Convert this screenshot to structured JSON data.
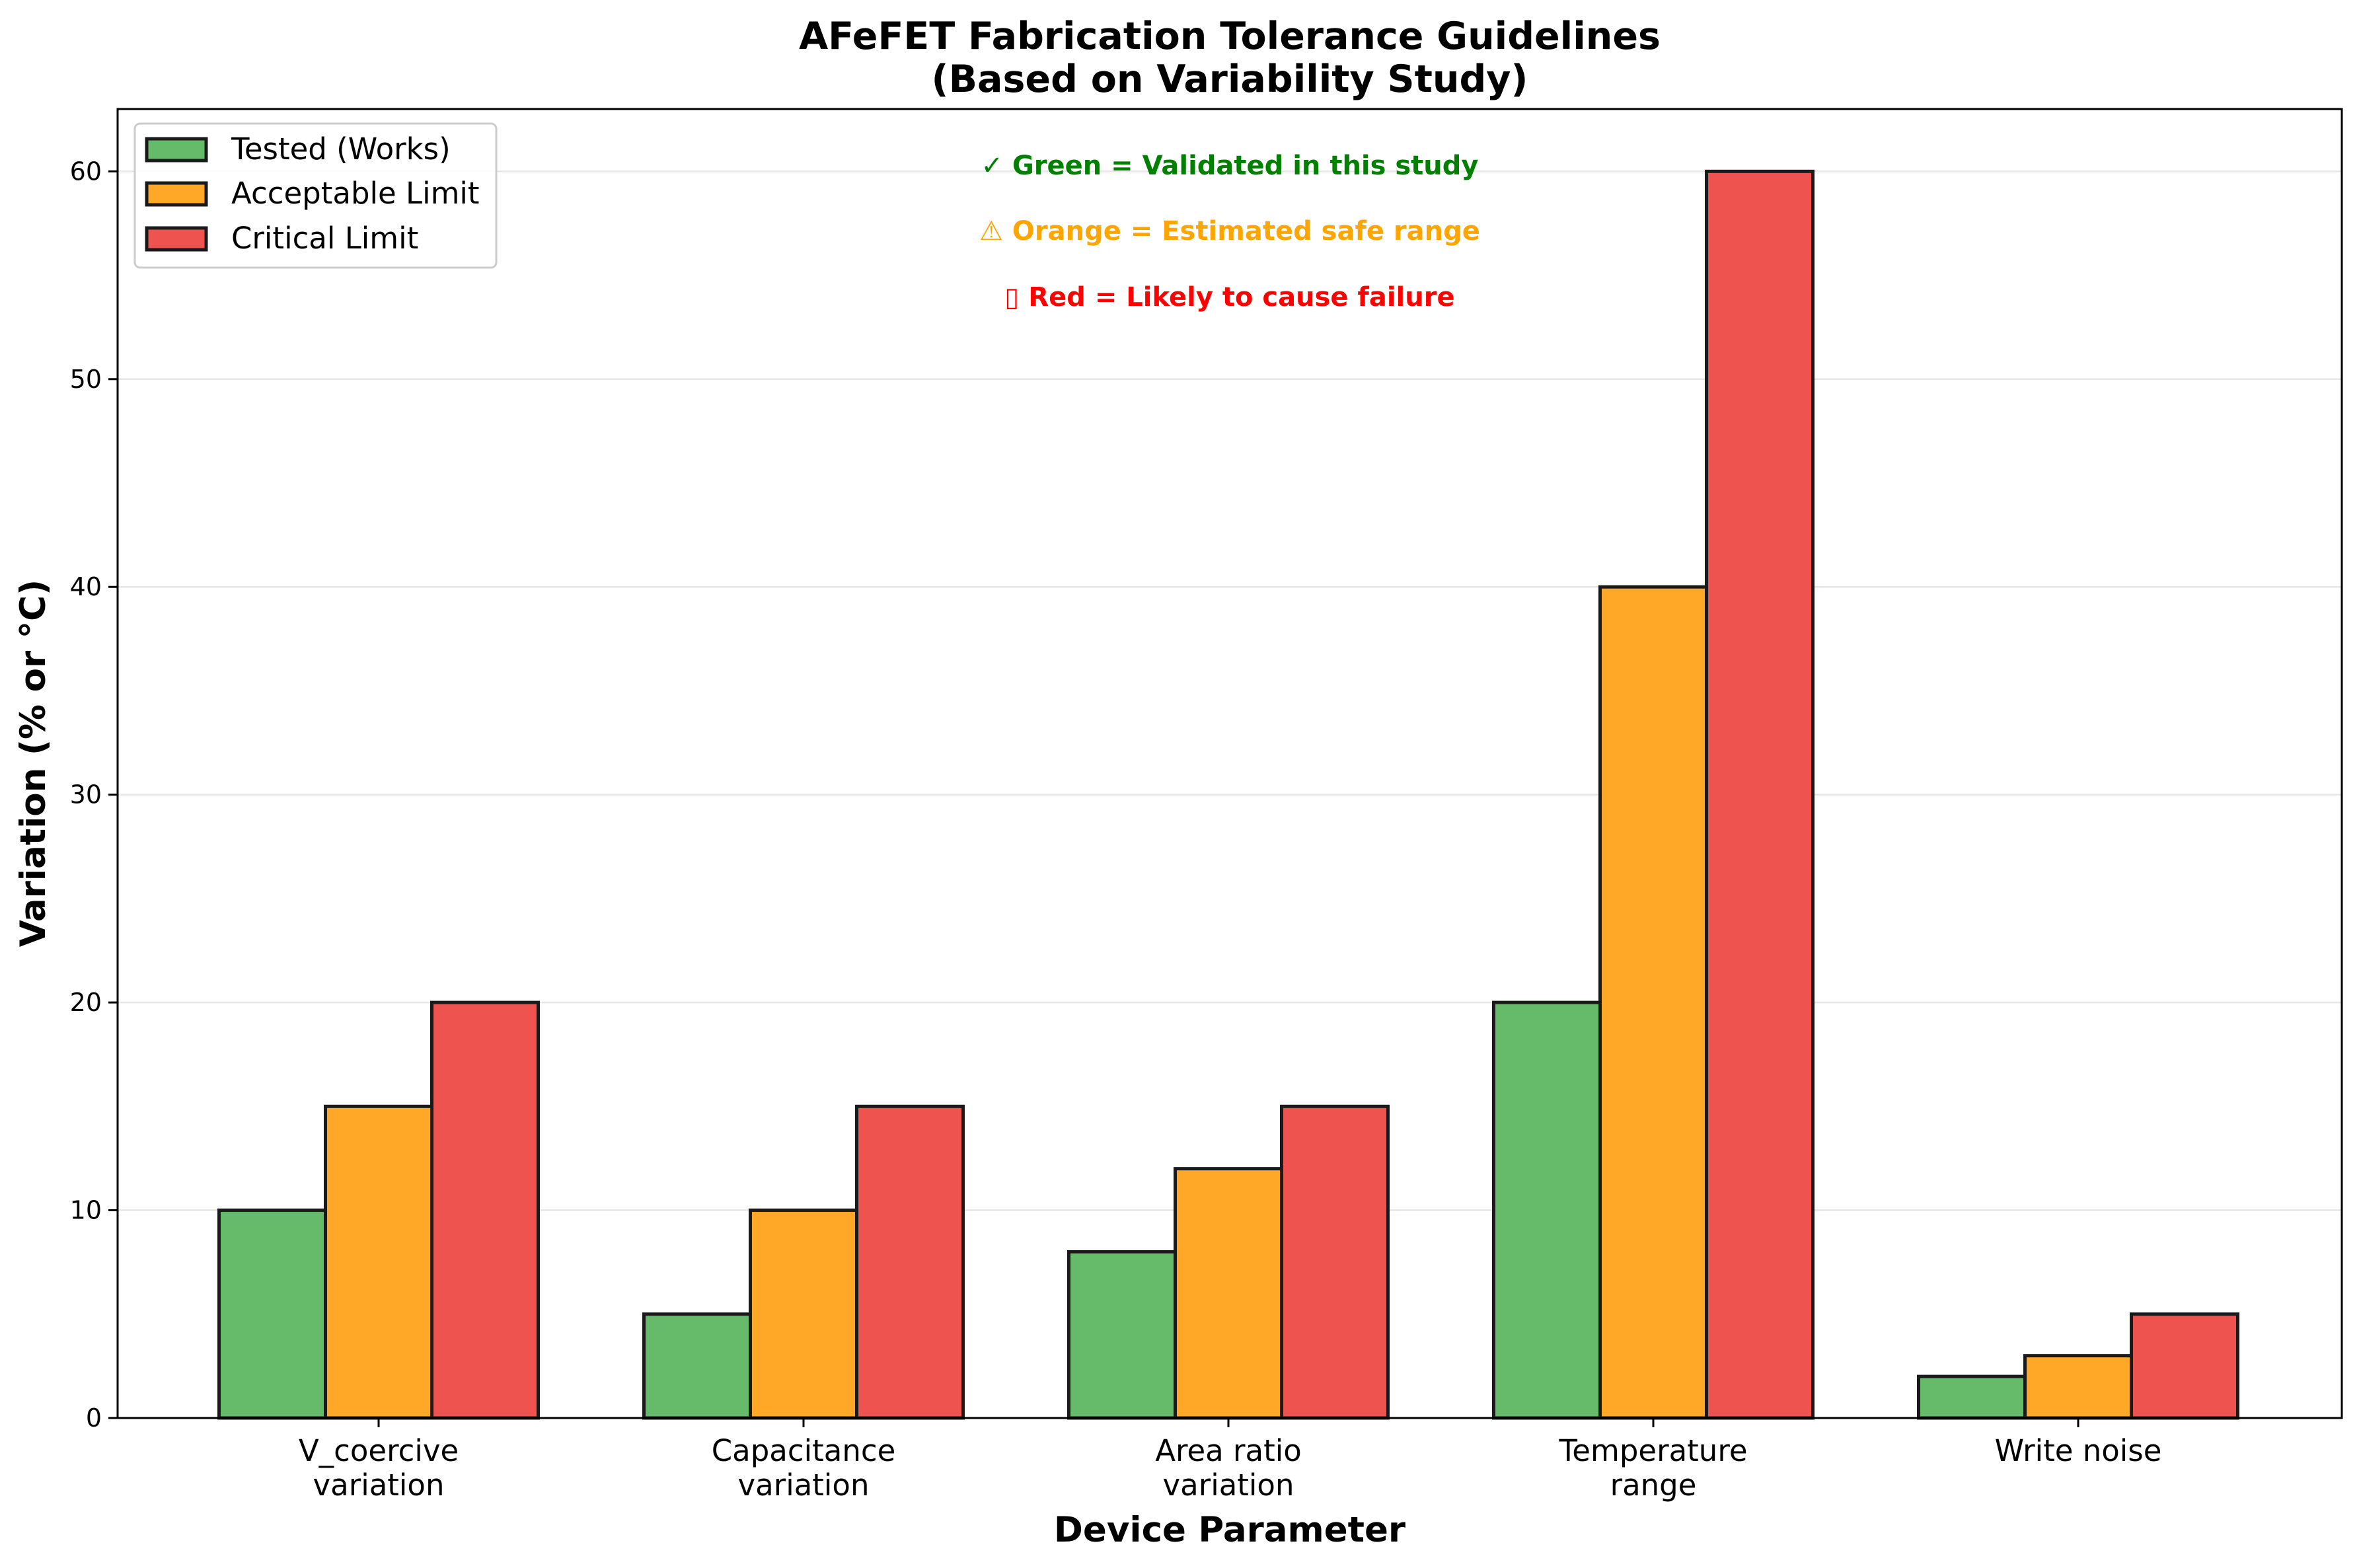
{
  "chart_data": {
    "type": "bar",
    "title": "AFeFET Fabrication Tolerance Guidelines",
    "subtitle": "(Based on Variability Study)",
    "xlabel": "Device Parameter",
    "ylabel": "Variation (% or °C)",
    "ylim": [
      0,
      63
    ],
    "yticks": [
      0,
      10,
      20,
      30,
      40,
      50,
      60
    ],
    "categories": [
      [
        "V_coercive",
        "variation"
      ],
      [
        "Capacitance",
        "variation"
      ],
      [
        "Area ratio",
        "variation"
      ],
      [
        "Temperature",
        "range"
      ],
      [
        "Write noise"
      ]
    ],
    "series": [
      {
        "name": "Tested (Works)",
        "color": "#66bb6a",
        "values": [
          10,
          5,
          8,
          20,
          2
        ]
      },
      {
        "name": "Acceptable Limit",
        "color": "#ffa726",
        "values": [
          15,
          10,
          12,
          40,
          3
        ]
      },
      {
        "name": "Critical Limit",
        "color": "#ef5350",
        "values": [
          20,
          15,
          15,
          60,
          5
        ]
      }
    ],
    "grid": "y-only",
    "legend_position": "top-left",
    "annotations": [
      {
        "text": "✓ Green = Validated in this study",
        "color": "#008000"
      },
      {
        "text": "⚠ Orange = Estimated safe range",
        "color": "#ffa500"
      },
      {
        "text": "▯ Red = Likely to cause failure",
        "color": "#ff0000"
      }
    ]
  }
}
